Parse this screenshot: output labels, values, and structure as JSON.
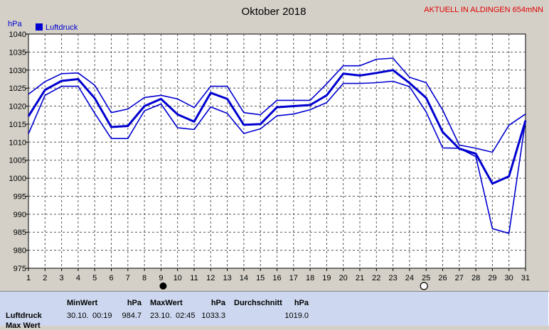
{
  "chart_data": {
    "type": "line",
    "title": "Oktober 2018",
    "station_note": "AKTUELL IN ALDINGEN 654mNN",
    "ylabel": "hPa",
    "xlim": [
      1,
      31
    ],
    "ylim": [
      975,
      1040
    ],
    "y_ticks": [
      975,
      980,
      985,
      990,
      995,
      1000,
      1005,
      1010,
      1015,
      1020,
      1025,
      1030,
      1035,
      1040
    ],
    "x_ticks": [
      1,
      2,
      3,
      4,
      5,
      6,
      7,
      8,
      9,
      10,
      11,
      12,
      13,
      14,
      15,
      16,
      17,
      18,
      19,
      20,
      21,
      22,
      23,
      24,
      25,
      26,
      27,
      28,
      29,
      30,
      31
    ],
    "grid": true,
    "legend": {
      "position": "top-left",
      "entries": [
        "Luftdruck"
      ]
    },
    "moon_phases": [
      {
        "day": 9,
        "phase": "new-moon"
      },
      {
        "day": 25,
        "phase": "full-moon"
      }
    ],
    "x": [
      1,
      2,
      3,
      4,
      5,
      6,
      7,
      8,
      9,
      10,
      11,
      12,
      13,
      14,
      15,
      16,
      17,
      18,
      19,
      20,
      21,
      22,
      23,
      24,
      25,
      26,
      27,
      28,
      29,
      30,
      31
    ],
    "series": [
      {
        "name": "Luftdruck",
        "role": "max",
        "values": [
          1023.3,
          1026.8,
          1029,
          1029.2,
          1025.8,
          1018.2,
          1019.2,
          1022.4,
          1023,
          1022,
          1019.6,
          1025.5,
          1025.5,
          1018.2,
          1017.6,
          1021.6,
          1021.6,
          1021.6,
          1026.2,
          1031.2,
          1031.2,
          1033,
          1033.3,
          1028,
          1026.5,
          1018.9,
          1009.2,
          1008.3,
          1007.2,
          1014.7,
          1017.8
        ]
      },
      {
        "name": "Luftdruck",
        "role": "mean",
        "values": [
          1017.2,
          1024.5,
          1027,
          1027.5,
          1022.2,
          1014.2,
          1014.5,
          1020,
          1022,
          1017.7,
          1015.7,
          1023.7,
          1022,
          1014.8,
          1015,
          1019.7,
          1020,
          1020.3,
          1023,
          1029,
          1028.5,
          1029.2,
          1030,
          1026.4,
          1022.3,
          1012.8,
          1008.2,
          1006.8,
          998.5,
          1000.5,
          1016
        ]
      },
      {
        "name": "Luftdruck",
        "role": "min",
        "values": [
          1012.3,
          1023,
          1025.5,
          1025.5,
          1018,
          1011,
          1011,
          1018.7,
          1020.6,
          1014,
          1013.5,
          1019.8,
          1018,
          1012.4,
          1013.7,
          1017.3,
          1017.8,
          1019,
          1021,
          1026.3,
          1026.3,
          1026.5,
          1026.9,
          1025.4,
          1018.4,
          1008.4,
          1008.3,
          1006,
          986,
          984.7,
          1016
        ]
      }
    ],
    "colors": {
      "line": "#0000d0",
      "background": "#d4d0c8",
      "grid": "#555555",
      "title_note": "#e00000",
      "hpa_label": "#0000d0"
    }
  },
  "stats": {
    "row_label": "Luftdruck",
    "next_row_label": "Max Wert",
    "min": {
      "header": "MinWert",
      "unit": "hPa",
      "date": "30.10.",
      "time": "00:19",
      "value": "984.7"
    },
    "max": {
      "header": "MaxWert",
      "unit": "hPa",
      "date": "23.10.",
      "time": "02:45",
      "value": "1033.3"
    },
    "avg": {
      "header": "Durchschnitt",
      "unit": "hPa",
      "value": "1019.0"
    }
  }
}
